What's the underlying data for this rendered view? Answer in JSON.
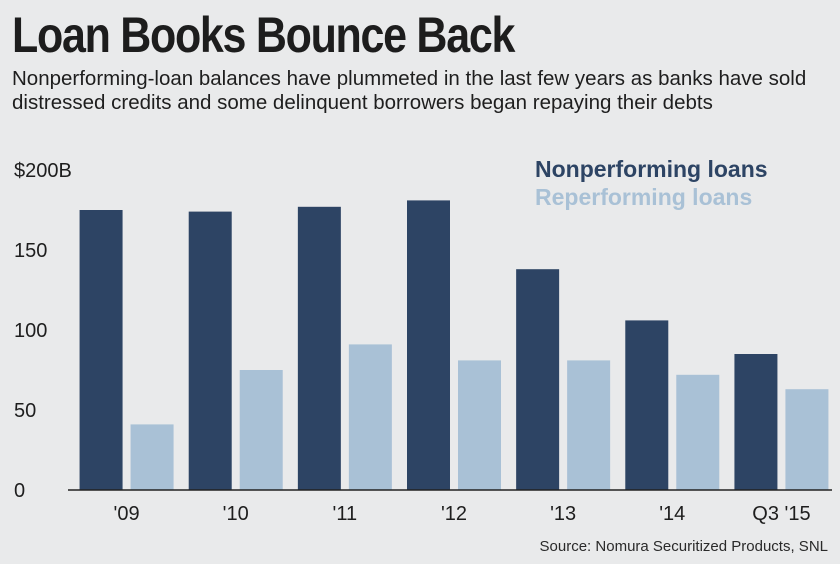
{
  "header": {
    "title": "Loan Books Bounce Back",
    "subtitle": "Nonperforming-loan balances have plummeted in the last few years as banks have sold distressed credits and some delinquent borrowers began repaying their debts"
  },
  "footer": {
    "source": "Source: Nomura Securitized Products, SNL"
  },
  "chart_data": {
    "type": "bar",
    "categories": [
      "'09",
      "'10",
      "'11",
      "'12",
      "'13",
      "'14",
      "Q3 '15"
    ],
    "series": [
      {
        "name": "Nonperforming loans",
        "color": "#2d4464",
        "values": [
          175,
          174,
          177,
          181,
          138,
          106,
          85
        ]
      },
      {
        "name": "Reperforming loans",
        "color": "#a9c1d6",
        "values": [
          41,
          75,
          91,
          81,
          81,
          72,
          63
        ]
      }
    ],
    "yticks": [
      "0",
      "50",
      "100",
      "150",
      "$200B"
    ],
    "ytick_values": [
      0,
      50,
      100,
      150,
      200
    ],
    "ylim": [
      0,
      200
    ],
    "grid": false,
    "legend": "top-right"
  }
}
